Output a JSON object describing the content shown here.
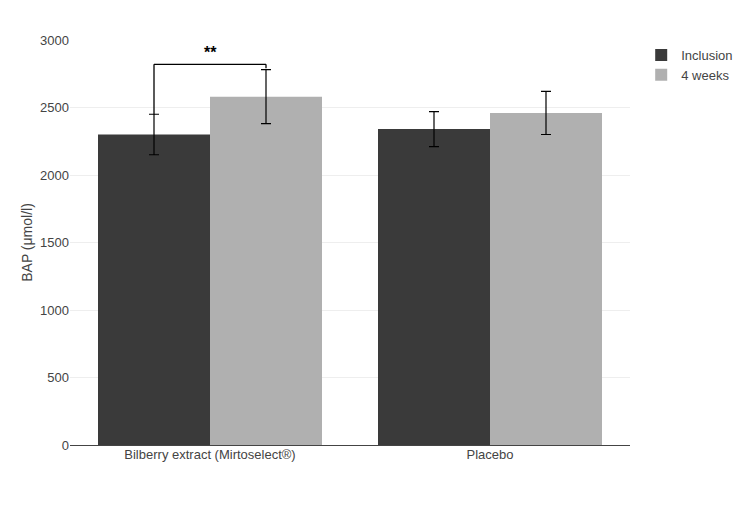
{
  "chart_data": {
    "type": "bar",
    "categories": [
      "Bilberry extract (Mirtoselect®)",
      "Placebo"
    ],
    "series": [
      {
        "name": "Inclusion",
        "color": "#3a3a3a",
        "values": [
          2300,
          2340
        ],
        "errors": [
          150,
          130
        ]
      },
      {
        "name": "4 weeks",
        "color": "#b0b0b0",
        "values": [
          2580,
          2460
        ],
        "errors": [
          200,
          160
        ]
      }
    ],
    "ylabel": "BAP (μmol/l)",
    "ylim": [
      0,
      3000
    ],
    "yticks": [
      0,
      500,
      1000,
      1500,
      2000,
      2500,
      3000
    ],
    "grid": true,
    "legend": "right",
    "annotations": [
      {
        "text": "**",
        "category": "Bilberry extract (Mirtoselect®)",
        "from_series": "Inclusion",
        "to_series": "4 weeks",
        "y": 2820,
        "from_y": 2450,
        "to_y": 2790
      }
    ]
  }
}
